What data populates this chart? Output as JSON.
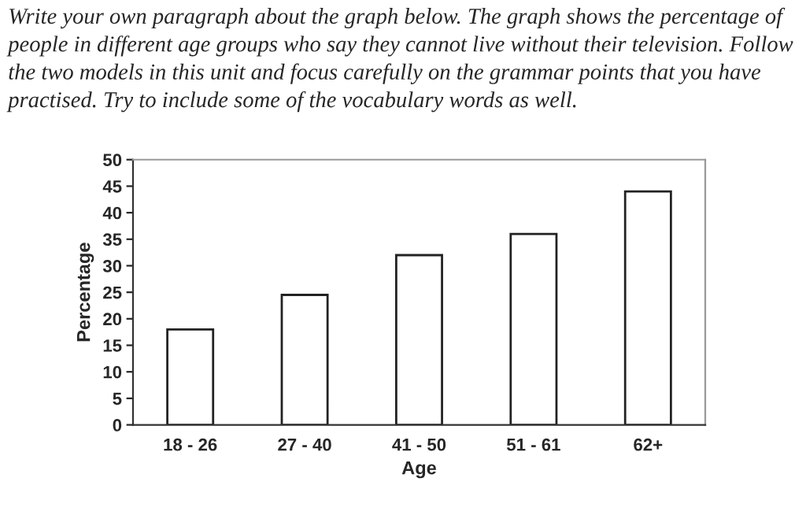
{
  "chart_data": {
    "type": "bar",
    "title": "Write your own paragraph about the graph below. The graph shows the percentage of people in different age groups who say they cannot live without their television. Follow the two models in this unit and focus carefully on the grammar points that you have practised. Try to include some of the vocabulary words as well.",
    "xlabel": "Age",
    "ylabel": "Percentage",
    "categories": [
      "18 - 26",
      "27 - 40",
      "41 - 50",
      "51 - 61",
      "62+"
    ],
    "values": [
      18,
      24.5,
      32,
      36,
      44
    ],
    "color": "#ffffff",
    "ylim": [
      0,
      50
    ],
    "yticks": [
      0,
      5,
      10,
      15,
      20,
      25,
      30,
      35,
      40,
      45,
      50
    ],
    "grid": false,
    "legend": false
  }
}
